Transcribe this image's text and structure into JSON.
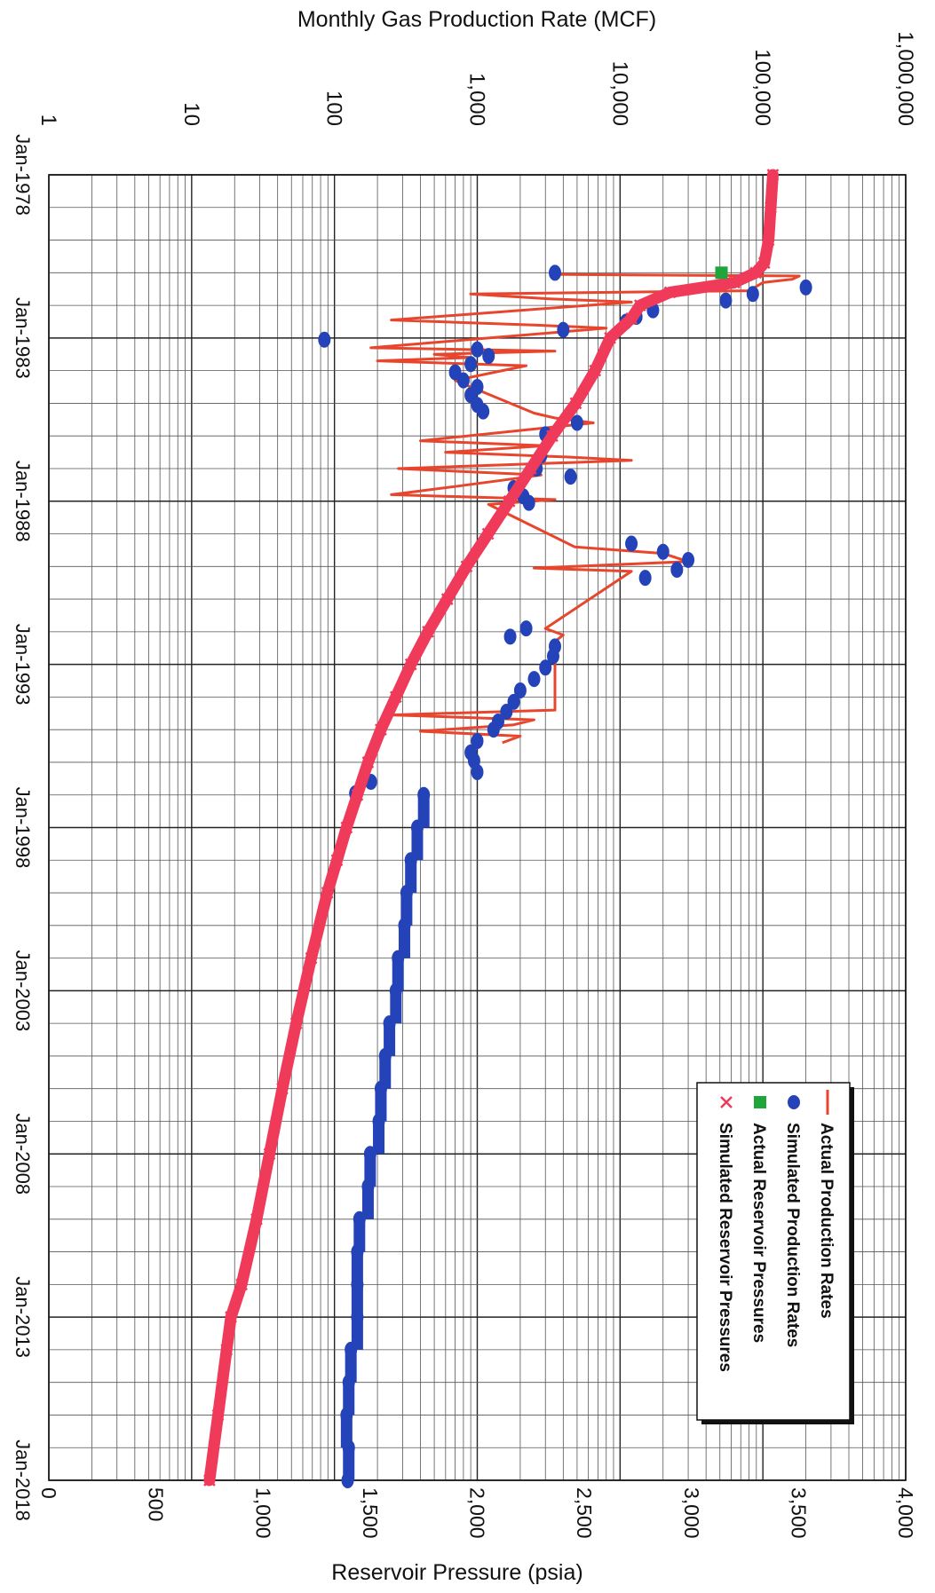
{
  "chart_data": {
    "type": "scatter",
    "orientation": "rotated-90-clockwise",
    "title": "",
    "top_axis_label": "Monthly Gas Production Rate (MCF)",
    "bottom_axis_label": "Reservoir Pressure (psia)",
    "rate_axis": {
      "scale": "log",
      "range": [
        1,
        1000000
      ],
      "ticks": [
        1,
        10,
        100,
        1000,
        10000,
        100000,
        1000000
      ],
      "tick_labels": [
        "1",
        "10",
        "100",
        "1,000",
        "10,000",
        "100,000",
        "1,000,000"
      ]
    },
    "pressure_axis": {
      "scale": "linear",
      "range": [
        0,
        4000
      ],
      "ticks": [
        0,
        500,
        1000,
        1500,
        2000,
        2500,
        3000,
        3500,
        4000
      ],
      "tick_labels": [
        "0",
        "500",
        "1,000",
        "1,500",
        "2,000",
        "2,500",
        "3,000",
        "3,500",
        "4,000"
      ]
    },
    "time_axis": {
      "range": [
        1978.0,
        2018.0
      ],
      "ticks": [
        1978,
        1983,
        1988,
        1993,
        1998,
        2003,
        2008,
        2013,
        2018
      ],
      "tick_labels": [
        "Jan-1978",
        "Jan-1983",
        "Jan-1988",
        "Jan-1993",
        "Jan-1998",
        "Jan-2003",
        "Jan-2008",
        "Jan-2013",
        "Jan-2018"
      ]
    },
    "grid": true,
    "legend": {
      "position": "right",
      "entries": [
        {
          "label": "Actual Production Rates",
          "symbol": "line",
          "color": "#e8452c"
        },
        {
          "label": "Simulated Production Rates",
          "symbol": "circle",
          "color": "#2443b8"
        },
        {
          "label": "Actual Reservoir Pressures",
          "symbol": "square",
          "color": "#1fa53a"
        },
        {
          "label": "Simulated Reservoir Pressures",
          "symbol": "x",
          "color": "#f03a5a"
        }
      ]
    },
    "series": [
      {
        "name": "Actual Production Rates",
        "axis": "rate",
        "points": [
          [
            1981.05,
            3800
          ],
          [
            1981.1,
            180000
          ],
          [
            1981.2,
            160000
          ],
          [
            1981.3,
            100000
          ],
          [
            1981.55,
            80000
          ],
          [
            1981.65,
            900
          ],
          [
            1981.8,
            3200
          ],
          [
            1981.9,
            12000
          ],
          [
            1982.45,
            250
          ],
          [
            1982.6,
            2500
          ],
          [
            1982.7,
            8000
          ],
          [
            1983.3,
            180
          ],
          [
            1983.4,
            3500
          ],
          [
            1983.5,
            500
          ],
          [
            1983.6,
            900
          ],
          [
            1983.7,
            200
          ],
          [
            1983.85,
            2200
          ],
          [
            1984.0,
            1500
          ],
          [
            1984.3,
            700
          ],
          [
            1985.3,
            2500
          ],
          [
            1985.45,
            3500
          ],
          [
            1985.6,
            6500
          ],
          [
            1986.15,
            400
          ],
          [
            1986.3,
            3000
          ],
          [
            1986.5,
            600
          ],
          [
            1986.65,
            4500
          ],
          [
            1986.75,
            12000
          ],
          [
            1987.0,
            280
          ],
          [
            1987.2,
            2800
          ],
          [
            1987.55,
            700
          ],
          [
            1987.8,
            250
          ],
          [
            1987.95,
            3500
          ],
          [
            1988.1,
            1200
          ],
          [
            1989.4,
            4800
          ],
          [
            1989.6,
            20000
          ],
          [
            1989.85,
            30000
          ],
          [
            1990.05,
            2500
          ],
          [
            1990.15,
            12000
          ],
          [
            1991.9,
            3000
          ],
          [
            1992.1,
            4000
          ],
          [
            1992.3,
            3500
          ],
          [
            1994.4,
            3500
          ],
          [
            1994.55,
            250
          ],
          [
            1994.7,
            2500
          ],
          [
            1994.85,
            1800
          ],
          [
            1995.05,
            400
          ],
          [
            1995.2,
            2000
          ],
          [
            1995.4,
            1500
          ]
        ]
      },
      {
        "name": "Simulated Production Rates",
        "axis": "rate",
        "points": [
          [
            1981.0,
            3500
          ],
          [
            1981.45,
            200000
          ],
          [
            1981.65,
            85000
          ],
          [
            1981.85,
            55000
          ],
          [
            1982.15,
            17000
          ],
          [
            1982.35,
            13000
          ],
          [
            1982.5,
            11000
          ],
          [
            1982.75,
            4000
          ],
          [
            1983.05,
            85
          ],
          [
            1983.35,
            1000
          ],
          [
            1983.55,
            1200
          ],
          [
            1983.8,
            900
          ],
          [
            1984.05,
            700
          ],
          [
            1984.3,
            800
          ],
          [
            1984.5,
            1000
          ],
          [
            1984.75,
            900
          ],
          [
            1985.05,
            1000
          ],
          [
            1985.25,
            1100
          ],
          [
            1985.6,
            5000
          ],
          [
            1985.95,
            3000
          ],
          [
            1986.6,
            2800
          ],
          [
            1987.0,
            2600
          ],
          [
            1987.25,
            4500
          ],
          [
            1987.6,
            1800
          ],
          [
            1987.85,
            2100
          ],
          [
            1988.05,
            2300
          ],
          [
            1989.3,
            12000
          ],
          [
            1989.55,
            20000
          ],
          [
            1989.8,
            30000
          ],
          [
            1990.1,
            25000
          ],
          [
            1990.35,
            15000
          ],
          [
            1991.9,
            2200
          ],
          [
            1992.15,
            1700
          ],
          [
            1992.45,
            3500
          ],
          [
            1992.75,
            3400
          ],
          [
            1993.1,
            3000
          ],
          [
            1993.45,
            2500
          ],
          [
            1993.8,
            2000
          ],
          [
            1994.15,
            1800
          ],
          [
            1994.45,
            1600
          ],
          [
            1994.75,
            1400
          ],
          [
            1995.0,
            1300
          ],
          [
            1995.35,
            1000
          ],
          [
            1995.7,
            900
          ],
          [
            1995.95,
            950
          ],
          [
            1996.3,
            1000
          ],
          [
            1996.6,
            180
          ],
          [
            1996.95,
            140
          ]
        ]
      },
      {
        "name": "Simulated Production Rates (decline)",
        "axis": "pressure",
        "points": [
          [
            1997.0,
            1750
          ],
          [
            1998.0,
            1720
          ],
          [
            1999.0,
            1690
          ],
          [
            2000.0,
            1670
          ],
          [
            2001.0,
            1660
          ],
          [
            2002.0,
            1630
          ],
          [
            2003.0,
            1620
          ],
          [
            2004.0,
            1590
          ],
          [
            2005.0,
            1570
          ],
          [
            2006.0,
            1550
          ],
          [
            2007.0,
            1540
          ],
          [
            2008.0,
            1500
          ],
          [
            2009.0,
            1490
          ],
          [
            2010.0,
            1450
          ],
          [
            2011.0,
            1440
          ],
          [
            2012.0,
            1440
          ],
          [
            2013.0,
            1440
          ],
          [
            2014.0,
            1410
          ],
          [
            2015.0,
            1400
          ],
          [
            2016.0,
            1390
          ],
          [
            2017.0,
            1400
          ],
          [
            2018.0,
            1395
          ]
        ]
      },
      {
        "name": "Actual Reservoir Pressures",
        "axis": "pressure",
        "points": [
          [
            1981.0,
            3140
          ]
        ]
      },
      {
        "name": "Simulated Reservoir Pressures",
        "axis": "pressure",
        "points": [
          [
            1978.0,
            3380
          ],
          [
            1979.0,
            3370
          ],
          [
            1980.0,
            3360
          ],
          [
            1980.7,
            3340
          ],
          [
            1981.0,
            3300
          ],
          [
            1981.3,
            3200
          ],
          [
            1981.6,
            2900
          ],
          [
            1982.0,
            2760
          ],
          [
            1982.4,
            2720
          ],
          [
            1983.0,
            2620
          ],
          [
            1984.0,
            2550
          ],
          [
            1985.0,
            2460
          ],
          [
            1986.0,
            2350
          ],
          [
            1987.0,
            2250
          ],
          [
            1988.0,
            2150
          ],
          [
            1989.0,
            2050
          ],
          [
            1990.0,
            1950
          ],
          [
            1991.0,
            1860
          ],
          [
            1992.0,
            1770
          ],
          [
            1993.0,
            1690
          ],
          [
            1994.0,
            1620
          ],
          [
            1995.0,
            1550
          ],
          [
            1996.0,
            1490
          ],
          [
            1997.0,
            1440
          ],
          [
            1998.0,
            1390
          ],
          [
            1999.0,
            1345
          ],
          [
            2000.0,
            1300
          ],
          [
            2002.0,
            1225
          ],
          [
            2004.0,
            1155
          ],
          [
            2006.0,
            1090
          ],
          [
            2008.0,
            1030
          ],
          [
            2010.0,
            970
          ],
          [
            2012.0,
            900
          ],
          [
            2013.0,
            850
          ],
          [
            2014.0,
            830
          ],
          [
            2016.0,
            790
          ],
          [
            2018.0,
            750
          ]
        ]
      }
    ]
  }
}
